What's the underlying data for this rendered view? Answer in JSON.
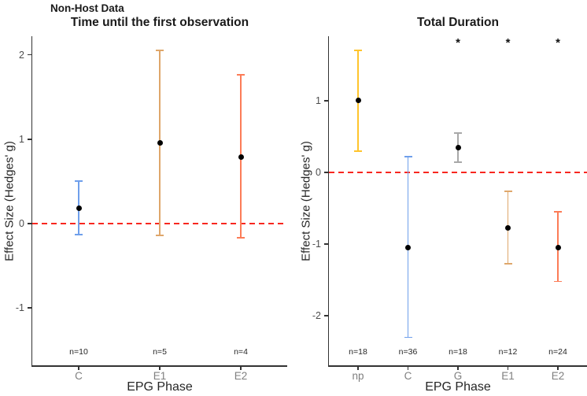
{
  "figure": {
    "suptitle": "Non-Host Data",
    "sig_marker": "*"
  },
  "colors": {
    "reference_line": "#F8271F",
    "axis": "#333333",
    "point": "#000000",
    "phase_blue": "#6F9FEB",
    "phase_gold": "#FFC42D",
    "phase_gray": "#A8A8A8",
    "phase_tan": "#DFA76B",
    "phase_coral": "#FC7C57"
  },
  "chart_data": [
    {
      "type": "errorbar",
      "title": "Time until the first observation",
      "xlabel": "EPG Phase",
      "ylabel": "Effect Size (Hedges' g)",
      "categories": [
        "C",
        "E1",
        "E2"
      ],
      "y_ticks": [
        2,
        1,
        0,
        -1
      ],
      "ylim": [
        -1.68,
        2.22
      ],
      "reference_y": 0,
      "grid": false,
      "legend": "none",
      "points": [
        {
          "phase": "C",
          "mean": 0.18,
          "ci_low": -0.13,
          "ci_high": 0.5,
          "n_label": "n=10",
          "color": "#6F9FEB",
          "significant": false
        },
        {
          "phase": "E1",
          "mean": 0.96,
          "ci_low": -0.14,
          "ci_high": 2.05,
          "n_label": "n=5",
          "color": "#DFA76B",
          "significant": false
        },
        {
          "phase": "E2",
          "mean": 0.79,
          "ci_low": -0.17,
          "ci_high": 1.76,
          "n_label": "n=4",
          "color": "#FC7C57",
          "significant": false
        }
      ]
    },
    {
      "type": "errorbar",
      "title": "Total Duration",
      "xlabel": "EPG Phase",
      "ylabel": "Effect Size (Hedges' g)",
      "categories": [
        "np",
        "C",
        "G",
        "E1",
        "E2"
      ],
      "y_ticks": [
        1,
        0,
        -1,
        -2
      ],
      "ylim": [
        -2.69,
        1.9
      ],
      "reference_y": 0,
      "grid": false,
      "legend": "none",
      "points": [
        {
          "phase": "np",
          "mean": 1.0,
          "ci_low": 0.3,
          "ci_high": 1.7,
          "n_label": "n=18",
          "color": "#FFC42D",
          "significant": false
        },
        {
          "phase": "C",
          "mean": -1.05,
          "ci_low": -2.3,
          "ci_high": 0.22,
          "n_label": "n=36",
          "color": "#6F9FEB",
          "significant": false
        },
        {
          "phase": "G",
          "mean": 0.35,
          "ci_low": 0.14,
          "ci_high": 0.55,
          "n_label": "n=18",
          "color": "#A8A8A8",
          "significant": true
        },
        {
          "phase": "E1",
          "mean": -0.77,
          "ci_low": -1.27,
          "ci_high": -0.26,
          "n_label": "n=12",
          "color": "#DFA76B",
          "significant": true
        },
        {
          "phase": "E2",
          "mean": -1.05,
          "ci_low": -1.52,
          "ci_high": -0.55,
          "n_label": "n=24",
          "color": "#FC7C57",
          "significant": true
        }
      ]
    }
  ]
}
